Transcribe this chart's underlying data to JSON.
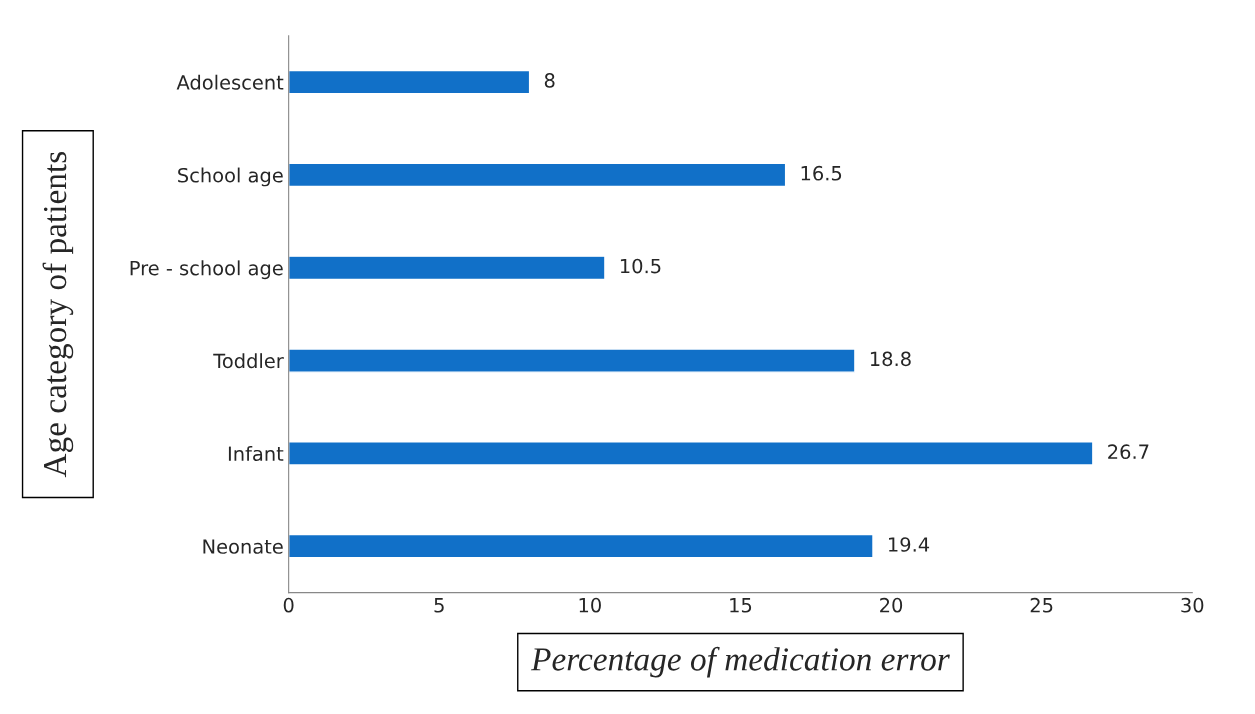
{
  "chart_data": {
    "type": "bar",
    "orientation": "horizontal",
    "categories": [
      "Adolescent",
      "School age",
      "Pre - school age",
      "Toddler",
      "Infant",
      "Neonate"
    ],
    "values": [
      8,
      16.5,
      10.5,
      18.8,
      26.7,
      19.4
    ],
    "color": "#1170c8",
    "xlim": [
      0,
      30
    ],
    "xticks": [
      0,
      5,
      10,
      15,
      20,
      25,
      30
    ],
    "xlabel": "Percentage of medication error",
    "ylabel": "Age category of patients",
    "data_labels": true,
    "grid": false,
    "legend": false
  }
}
